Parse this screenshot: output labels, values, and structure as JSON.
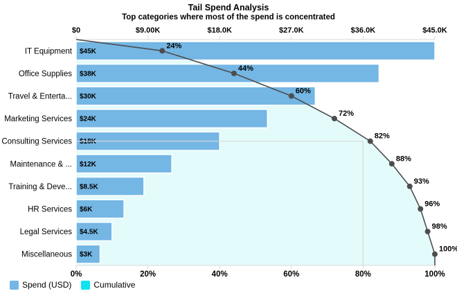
{
  "title": "Tail Spend Analysis",
  "subtitle": "Top categories where most of the spend is concentrated",
  "chart_data": {
    "type": "bar",
    "orientation": "horizontal-pareto",
    "categories": [
      "IT Equipment",
      "Office Supplies",
      "Travel & Enterta...",
      "Marketing Services",
      "Consulting Services",
      "Maintenance & ...",
      "Training & Deve...",
      "HR Services",
      "Legal Services",
      "Miscellaneous"
    ],
    "series": [
      {
        "name": "Spend (USD)",
        "type": "bar",
        "values": [
          45000,
          38000,
          30000,
          24000,
          18000,
          12000,
          8500,
          6000,
          4500,
          3000
        ],
        "labels": [
          "$45K",
          "$38K",
          "$30K",
          "$24K",
          "$18K",
          "$12K",
          "$8.5K",
          "$6K",
          "$4.5K",
          "$3K"
        ],
        "color": "#74b6e4"
      },
      {
        "name": "Cumulative",
        "type": "line",
        "values_pct": [
          24,
          44,
          60,
          72,
          82,
          88,
          93,
          96,
          98,
          100
        ],
        "labels": [
          "24%",
          "44%",
          "60%",
          "72%",
          "82%",
          "88%",
          "93%",
          "96%",
          "98%",
          "100%"
        ],
        "line_color": "#4d4d4d",
        "marker_color": "#4d4d4d",
        "area_color": "#e4fbfb",
        "legend_color": "#0fe3ef"
      }
    ],
    "x_axis_top": {
      "labels": [
        "$0",
        "$9.00K",
        "$18.0K",
        "$27.0K",
        "$36.0K",
        "$45.0K"
      ],
      "min": 0,
      "max": 45000
    },
    "x_axis_bottom": {
      "labels": [
        "0%",
        "20%",
        "40%",
        "60%",
        "80%",
        "100%"
      ],
      "min": 0,
      "max": 100
    },
    "annotation": {
      "vline_at_pct": 80,
      "hline_at_category": "Consulting Services"
    },
    "grid": "off",
    "axis_color": "#d9d9d9",
    "text_color": "#000000",
    "legend_position": "bottom-left"
  },
  "legend": {
    "items": [
      {
        "label": "Spend (USD)",
        "color": "#74b6e4"
      },
      {
        "label": "Cumulative",
        "color": "#0fe3ef"
      }
    ]
  }
}
